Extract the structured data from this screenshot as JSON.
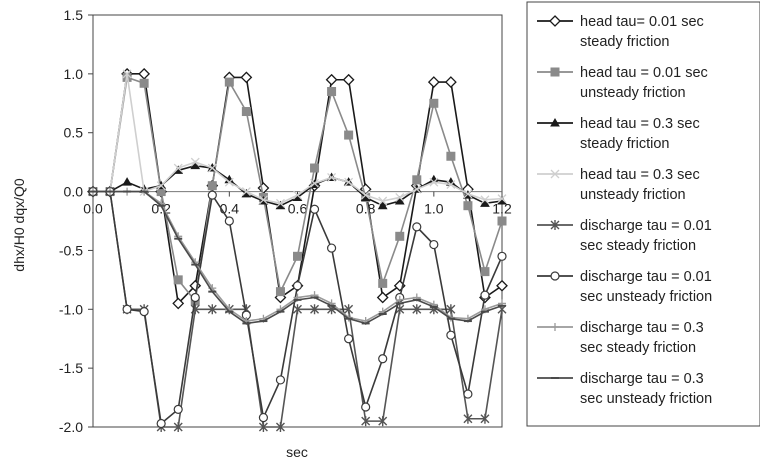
{
  "chart_data": {
    "type": "line",
    "title": "",
    "xlabel": "sec",
    "ylabel": "dhx/H0  dqx/Q0",
    "xlim": [
      0,
      1.2
    ],
    "ylim": [
      -2.0,
      1.5
    ],
    "x_ticks": [
      "0.0",
      "0.2",
      "0.4",
      "0.6",
      "0.8",
      "1.0",
      "1.2"
    ],
    "y_ticks": [
      "1.5",
      "1.0",
      "0.5",
      "0.0",
      "-0.5",
      "-1.0",
      "-1.5",
      "-2.0"
    ],
    "grid": false,
    "legend_position": "right",
    "series": [
      {
        "name": "head tau= 0.01 sec steady friction",
        "color": "#1a1a1a",
        "marker": "diamond",
        "x": [
          0,
          0.05,
          0.1,
          0.15,
          0.2,
          0.25,
          0.3,
          0.35,
          0.4,
          0.45,
          0.5,
          0.55,
          0.6,
          0.65,
          0.7,
          0.75,
          0.8,
          0.85,
          0.9,
          0.95,
          1.0,
          1.05,
          1.1,
          1.15,
          1.2
        ],
        "y": [
          0,
          0,
          1.0,
          1.0,
          0,
          -0.95,
          -0.8,
          0.05,
          0.97,
          0.97,
          0.03,
          -0.9,
          -0.8,
          0.05,
          0.95,
          0.95,
          0.02,
          -0.9,
          -0.8,
          0.05,
          0.93,
          0.93,
          0.02,
          -0.9,
          -0.8
        ]
      },
      {
        "name": "head tau = 0.01 sec unsteady friction",
        "color": "#8a8a8a",
        "marker": "square",
        "x": [
          0,
          0.05,
          0.1,
          0.15,
          0.2,
          0.25,
          0.3,
          0.35,
          0.4,
          0.45,
          0.5,
          0.55,
          0.6,
          0.65,
          0.7,
          0.75,
          0.8,
          0.85,
          0.9,
          0.95,
          1.0,
          1.05,
          1.1,
          1.15,
          1.2
        ],
        "y": [
          0,
          0,
          0.97,
          0.92,
          0,
          -0.75,
          -0.93,
          0.05,
          0.93,
          0.68,
          -0.05,
          -0.85,
          -0.55,
          0.2,
          0.85,
          0.48,
          -0.05,
          -0.78,
          -0.38,
          0.1,
          0.75,
          0.3,
          -0.12,
          -0.68,
          -0.25
        ]
      },
      {
        "name": "head tau = 0.3 sec steady friction",
        "color": "#1a1a1a",
        "marker": "triangle",
        "x": [
          0,
          0.05,
          0.1,
          0.15,
          0.2,
          0.25,
          0.3,
          0.35,
          0.4,
          0.45,
          0.5,
          0.55,
          0.6,
          0.65,
          0.7,
          0.75,
          0.8,
          0.85,
          0.9,
          0.95,
          1.0,
          1.05,
          1.1,
          1.15,
          1.2
        ],
        "y": [
          0,
          0,
          0.08,
          0.02,
          0.05,
          0.18,
          0.22,
          0.2,
          0.1,
          -0.02,
          -0.08,
          -0.12,
          -0.05,
          0.06,
          0.12,
          0.08,
          -0.05,
          -0.12,
          -0.08,
          0.02,
          0.1,
          0.08,
          -0.03,
          -0.1,
          -0.08
        ]
      },
      {
        "name": "head tau = 0.3 sec unsteady friction",
        "color": "#cfcfcf",
        "marker": "cross",
        "x": [
          0,
          0.05,
          0.1,
          0.15,
          0.2,
          0.25,
          0.3,
          0.35,
          0.4,
          0.45,
          0.5,
          0.55,
          0.6,
          0.65,
          0.7,
          0.75,
          0.8,
          0.85,
          0.9,
          0.95,
          1.0,
          1.05,
          1.1,
          1.15,
          1.2
        ],
        "y": [
          0,
          0,
          1.0,
          0.0,
          0.05,
          0.2,
          0.25,
          0.2,
          0.08,
          0.0,
          -0.07,
          -0.1,
          -0.03,
          0.07,
          0.12,
          0.08,
          -0.03,
          -0.08,
          -0.05,
          0.02,
          0.08,
          0.06,
          -0.02,
          -0.07,
          -0.06
        ]
      },
      {
        "name": "discharge tau = 0.01 sec steady friction",
        "color": "#555555",
        "marker": "asterisk",
        "x": [
          0,
          0.05,
          0.1,
          0.15,
          0.2,
          0.25,
          0.3,
          0.35,
          0.4,
          0.45,
          0.5,
          0.55,
          0.6,
          0.65,
          0.7,
          0.75,
          0.8,
          0.85,
          0.9,
          0.95,
          1.0,
          1.05,
          1.1,
          1.15,
          1.2
        ],
        "y": [
          0,
          0,
          -1.0,
          -1.0,
          -2.0,
          -2.0,
          -1.0,
          -1.0,
          -1.0,
          -1.0,
          -2.0,
          -2.0,
          -1.0,
          -1.0,
          -1.0,
          -1.0,
          -1.95,
          -1.95,
          -1.0,
          -1.0,
          -1.0,
          -1.0,
          -1.93,
          -1.93,
          -1.0
        ]
      },
      {
        "name": "discharge tau = 0.01 sec unsteady friction",
        "color": "#3a3a3a",
        "marker": "circle",
        "x": [
          0,
          0.05,
          0.1,
          0.15,
          0.2,
          0.25,
          0.3,
          0.35,
          0.4,
          0.45,
          0.5,
          0.55,
          0.6,
          0.65,
          0.7,
          0.75,
          0.8,
          0.85,
          0.9,
          0.95,
          1.0,
          1.05,
          1.1,
          1.15,
          1.2
        ],
        "y": [
          0,
          0,
          -1.0,
          -1.02,
          -1.97,
          -1.85,
          -0.9,
          -0.03,
          -0.25,
          -1.05,
          -1.92,
          -1.6,
          -0.8,
          -0.15,
          -0.48,
          -1.25,
          -1.83,
          -1.42,
          -0.9,
          -0.3,
          -0.45,
          -1.22,
          -1.72,
          -0.88,
          -0.55
        ]
      },
      {
        "name": "discharge tau = 0.3 sec steady friction",
        "color": "#9a9a9a",
        "marker": "plus",
        "x": [
          0,
          0.05,
          0.1,
          0.15,
          0.2,
          0.25,
          0.3,
          0.35,
          0.4,
          0.45,
          0.5,
          0.55,
          0.6,
          0.65,
          0.7,
          0.75,
          0.8,
          0.85,
          0.9,
          0.95,
          1.0,
          1.05,
          1.1,
          1.15,
          1.2
        ],
        "y": [
          0,
          0,
          0,
          0,
          -0.1,
          -0.38,
          -0.6,
          -0.82,
          -1.0,
          -1.1,
          -1.08,
          -1.0,
          -0.9,
          -0.88,
          -0.95,
          -1.07,
          -1.1,
          -1.02,
          -0.92,
          -0.9,
          -0.96,
          -1.07,
          -1.08,
          -1.0,
          -0.95
        ]
      },
      {
        "name": "discharge tau = 0.3 sec unsteady friction",
        "color": "#4a4a4a",
        "marker": "dash",
        "x": [
          0,
          0.05,
          0.1,
          0.15,
          0.2,
          0.25,
          0.3,
          0.35,
          0.4,
          0.45,
          0.5,
          0.55,
          0.6,
          0.65,
          0.7,
          0.75,
          0.8,
          0.85,
          0.9,
          0.95,
          1.0,
          1.05,
          1.1,
          1.15,
          1.2
        ],
        "y": [
          0,
          0,
          0,
          0,
          -0.12,
          -0.4,
          -0.62,
          -0.85,
          -1.02,
          -1.12,
          -1.1,
          -1.02,
          -0.92,
          -0.9,
          -0.97,
          -1.08,
          -1.12,
          -1.04,
          -0.95,
          -0.92,
          -0.98,
          -1.08,
          -1.1,
          -1.02,
          -0.97
        ]
      }
    ]
  }
}
